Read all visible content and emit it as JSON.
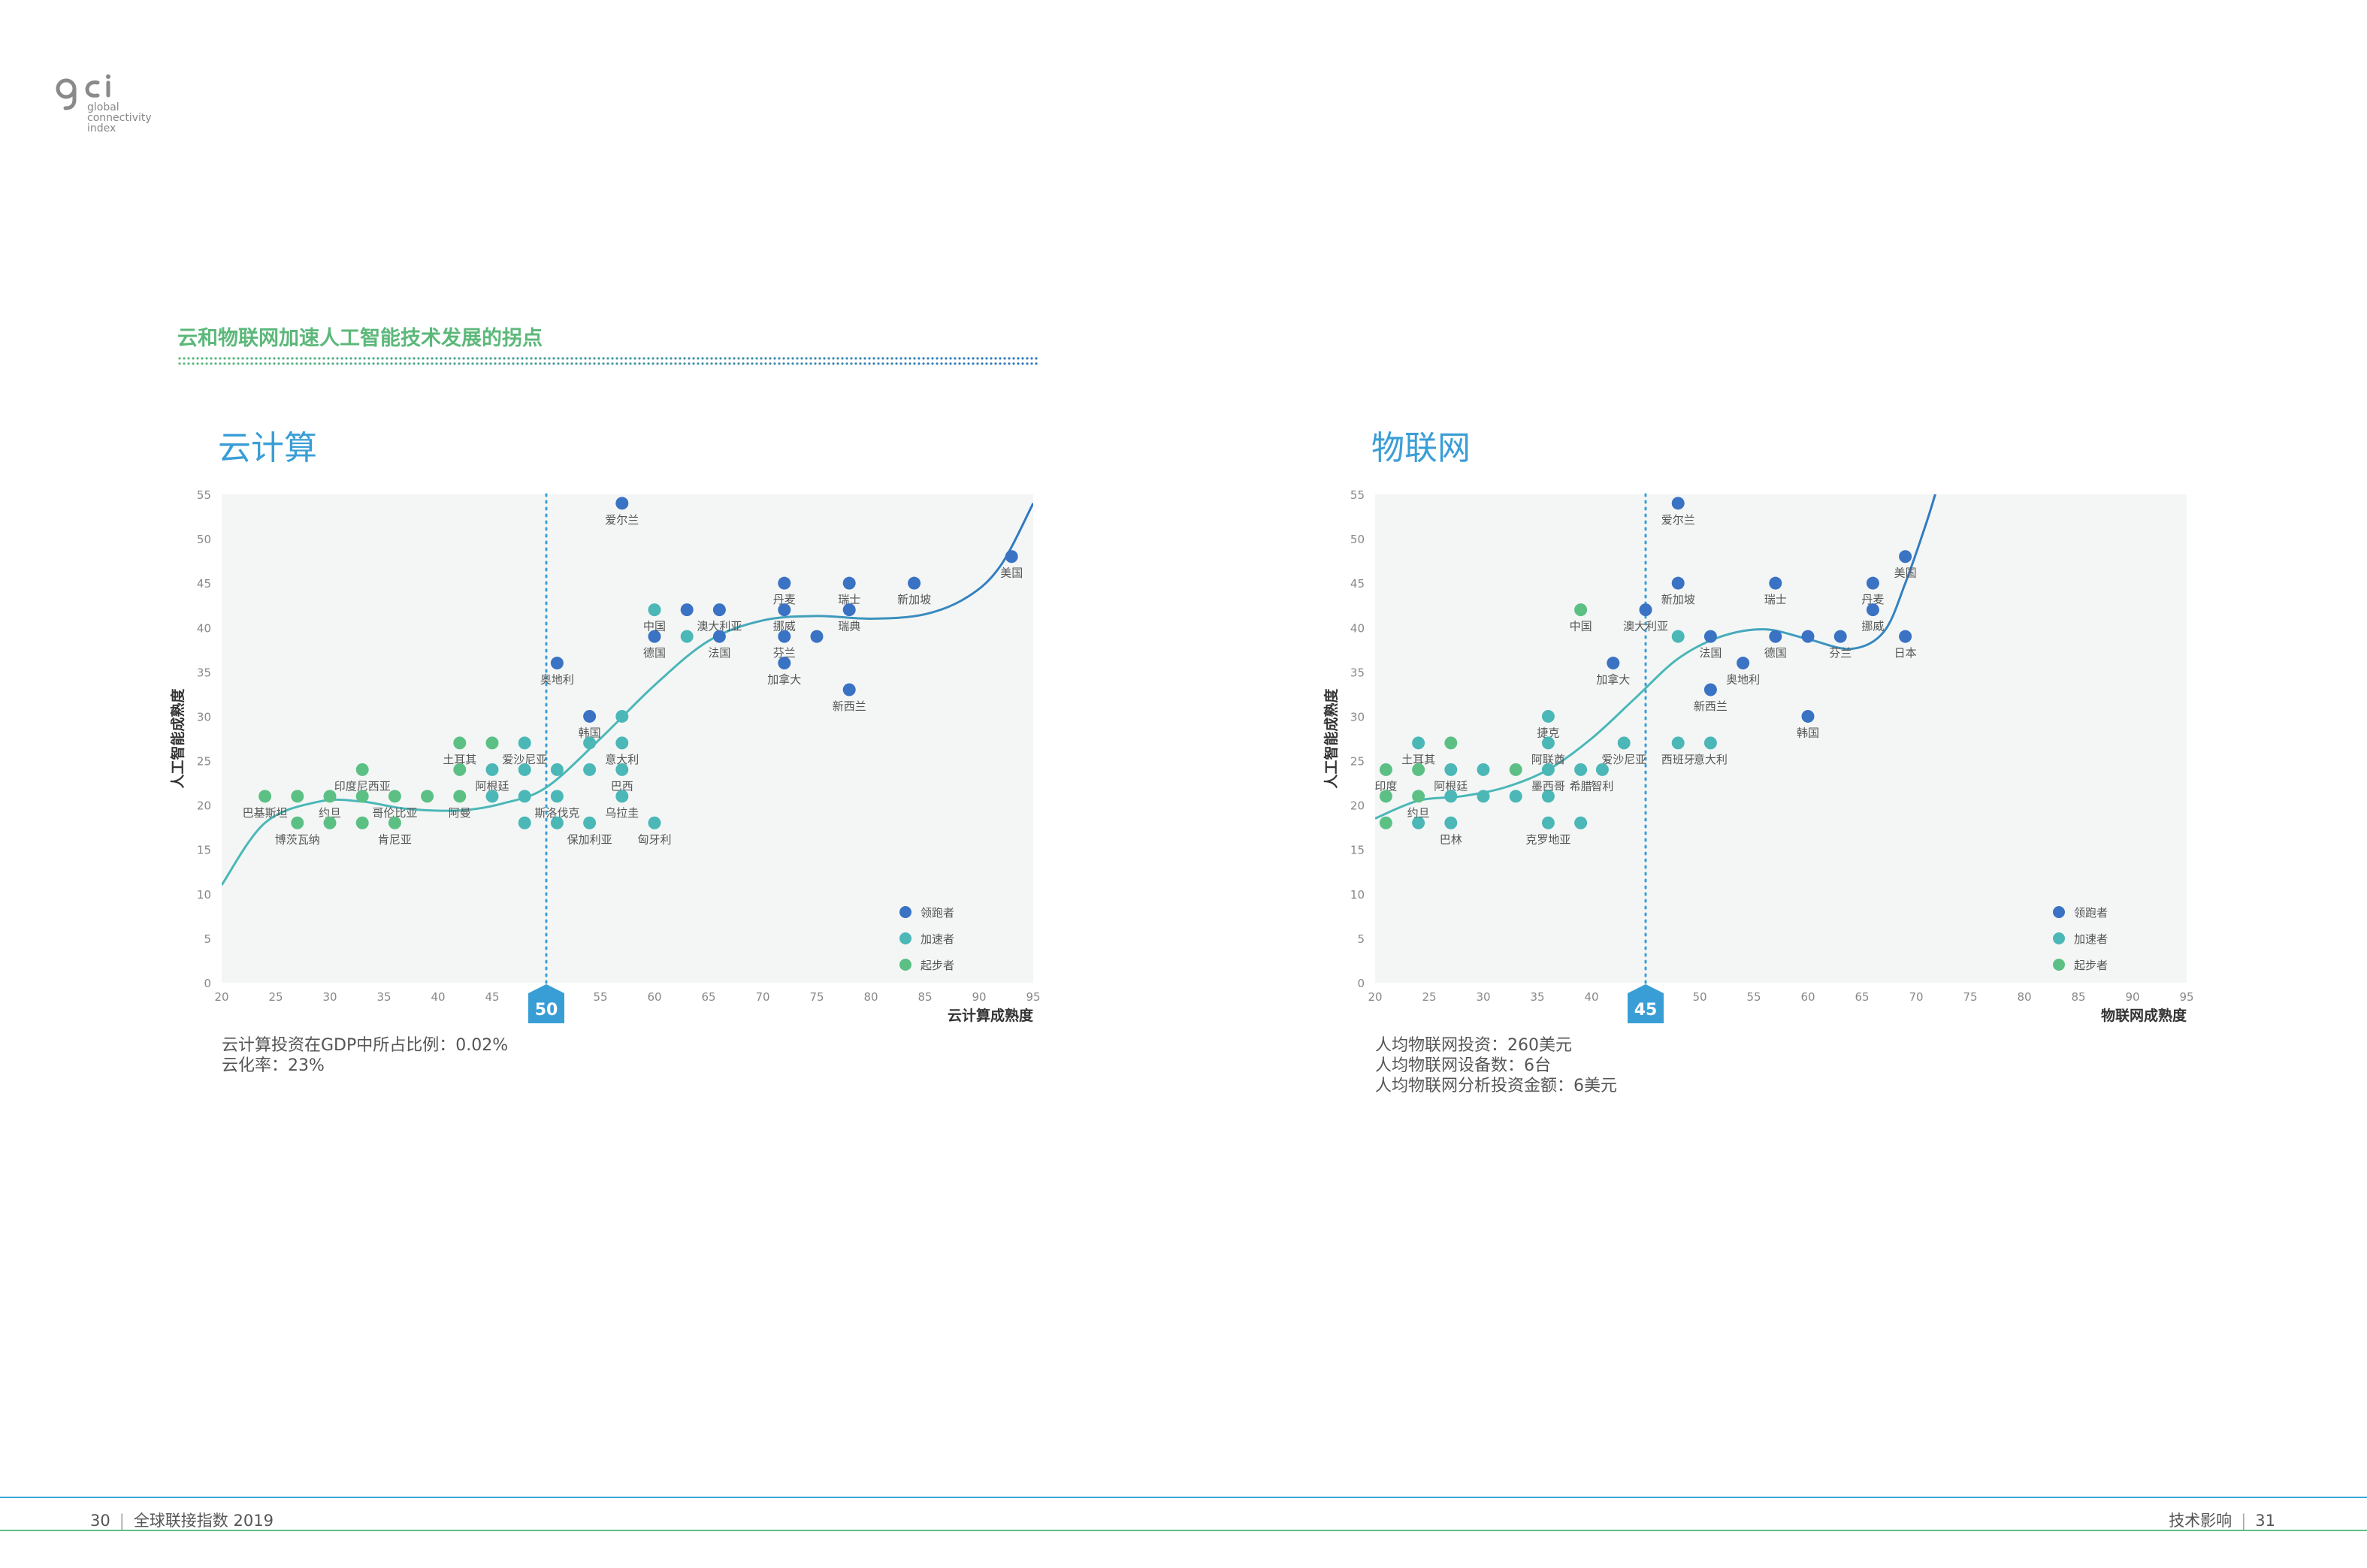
{
  "brand": {
    "logo_mark": "gci",
    "logo_lines": [
      "global",
      "connectivity",
      "index"
    ]
  },
  "section_title": "云和物联网加速人工智能技术发展的拐点",
  "charts": [
    {
      "heading": "云计算",
      "notes": [
        "云计算投资在GDP中所占比例：0.02%",
        "云化率：23%"
      ],
      "marker_label": "50",
      "legend": [
        "领跑者",
        "加速者",
        "起步者"
      ]
    },
    {
      "heading": "物联网",
      "notes": [
        "人均物联网投资：260美元",
        "人均物联网设备数：6台",
        "人均物联网分析投资金额：6美元"
      ],
      "marker_label": "45",
      "legend": [
        "领跑者",
        "加速者",
        "起步者"
      ]
    }
  ],
  "footer": {
    "left_page": "30",
    "left_title": "全球联接指数 2019",
    "right_title": "技术影响",
    "right_page": "31"
  },
  "colors": {
    "leader": "#3a72c4",
    "accelerator": "#4bb7b7",
    "starter": "#5cc084",
    "curve_a": "#4bb7b7",
    "curve_b": "#2f77c2",
    "marker": "#3a9ed6",
    "plot_bg": "#f4f6f6"
  },
  "chart_data": [
    {
      "type": "scatter",
      "xlabel": "云计算成熟度",
      "ylabel": "人工智能成熟度",
      "xlim": [
        20,
        95
      ],
      "ylim": [
        0,
        55
      ],
      "xticks": [
        20,
        25,
        30,
        35,
        40,
        45,
        50,
        55,
        60,
        65,
        70,
        75,
        80,
        85,
        90,
        95
      ],
      "yticks": [
        0,
        5,
        10,
        15,
        20,
        25,
        30,
        35,
        40,
        45,
        50,
        55
      ],
      "threshold_x": 50,
      "trend": [
        [
          20,
          11
        ],
        [
          24,
          18
        ],
        [
          29,
          20.4
        ],
        [
          33,
          20.4
        ],
        [
          37,
          19.6
        ],
        [
          42,
          19.4
        ],
        [
          46,
          20.2
        ],
        [
          50,
          22
        ],
        [
          55,
          27.5
        ],
        [
          60,
          33.5
        ],
        [
          65,
          38.5
        ],
        [
          70,
          40.8
        ],
        [
          75,
          41.3
        ],
        [
          80,
          41
        ],
        [
          85,
          41.5
        ],
        [
          89,
          43.5
        ],
        [
          92,
          47
        ],
        [
          95,
          54
        ]
      ],
      "series": [
        {
          "name": "领跑者",
          "points": [
            {
              "x": 57,
              "y": 54,
              "label": "爱尔兰"
            },
            {
              "x": 93,
              "y": 48,
              "label": "美国"
            },
            {
              "x": 78,
              "y": 45,
              "label": "瑞士"
            },
            {
              "x": 84,
              "y": 45,
              "label": "新加坡"
            },
            {
              "x": 72,
              "y": 45,
              "label": "丹麦"
            },
            {
              "x": 72,
              "y": 42,
              "label": "挪威"
            },
            {
              "x": 78,
              "y": 42,
              "label": "瑞典"
            },
            {
              "x": 63,
              "y": 42,
              "label": ""
            },
            {
              "x": 66,
              "y": 42,
              "label": "澳大利亚"
            },
            {
              "x": 60,
              "y": 39,
              "label": "德国"
            },
            {
              "x": 66,
              "y": 39,
              "label": "法国"
            },
            {
              "x": 72,
              "y": 39,
              "label": "芬兰"
            },
            {
              "x": 75,
              "y": 39,
              "label": ""
            },
            {
              "x": 72,
              "y": 36,
              "label": "加拿大"
            },
            {
              "x": 78,
              "y": 33,
              "label": "新西兰"
            },
            {
              "x": 51,
              "y": 36,
              "label": "奥地利"
            },
            {
              "x": 54,
              "y": 30,
              "label": "韩国"
            }
          ]
        },
        {
          "name": "加速者",
          "points": [
            {
              "x": 60,
              "y": 42,
              "label": "中国"
            },
            {
              "x": 63,
              "y": 39,
              "label": ""
            },
            {
              "x": 57,
              "y": 30,
              "label": ""
            },
            {
              "x": 54,
              "y": 27,
              "label": ""
            },
            {
              "x": 57,
              "y": 27,
              "label": "意大利"
            },
            {
              "x": 48,
              "y": 27,
              "label": "爱沙尼亚"
            },
            {
              "x": 45,
              "y": 24,
              "label": "阿根廷"
            },
            {
              "x": 48,
              "y": 24,
              "label": ""
            },
            {
              "x": 51,
              "y": 24,
              "label": ""
            },
            {
              "x": 54,
              "y": 24,
              "label": ""
            },
            {
              "x": 57,
              "y": 24,
              "label": "巴西"
            },
            {
              "x": 45,
              "y": 21,
              "label": ""
            },
            {
              "x": 48,
              "y": 21,
              "label": ""
            },
            {
              "x": 51,
              "y": 21,
              "label": "斯洛伐克"
            },
            {
              "x": 57,
              "y": 21,
              "label": "乌拉圭"
            },
            {
              "x": 48,
              "y": 18,
              "label": ""
            },
            {
              "x": 51,
              "y": 18,
              "label": ""
            },
            {
              "x": 54,
              "y": 18,
              "label": "保加利亚"
            },
            {
              "x": 60,
              "y": 18,
              "label": "匈牙利"
            }
          ]
        },
        {
          "name": "起步者",
          "points": [
            {
              "x": 42,
              "y": 27,
              "label": "土耳其"
            },
            {
              "x": 45,
              "y": 27,
              "label": ""
            },
            {
              "x": 33,
              "y": 24,
              "label": "印度尼西亚"
            },
            {
              "x": 42,
              "y": 24,
              "label": ""
            },
            {
              "x": 24,
              "y": 21,
              "label": "巴基斯坦"
            },
            {
              "x": 27,
              "y": 21,
              "label": ""
            },
            {
              "x": 30,
              "y": 21,
              "label": "约旦"
            },
            {
              "x": 33,
              "y": 21,
              "label": ""
            },
            {
              "x": 36,
              "y": 21,
              "label": "哥伦比亚"
            },
            {
              "x": 39,
              "y": 21,
              "label": ""
            },
            {
              "x": 42,
              "y": 21,
              "label": "阿曼"
            },
            {
              "x": 27,
              "y": 18,
              "label": "博茨瓦纳"
            },
            {
              "x": 30,
              "y": 18,
              "label": ""
            },
            {
              "x": 33,
              "y": 18,
              "label": ""
            },
            {
              "x": 36,
              "y": 18,
              "label": "肯尼亚"
            }
          ]
        }
      ]
    },
    {
      "type": "scatter",
      "xlabel": "物联网成熟度",
      "ylabel": "人工智能成熟度",
      "xlim": [
        20,
        95
      ],
      "ylim": [
        0,
        55
      ],
      "xticks": [
        20,
        25,
        30,
        35,
        40,
        45,
        50,
        55,
        60,
        65,
        70,
        75,
        80,
        85,
        90,
        95
      ],
      "yticks": [
        0,
        5,
        10,
        15,
        20,
        25,
        30,
        35,
        40,
        45,
        50,
        55
      ],
      "threshold_x": 45,
      "trend": [
        [
          20,
          18.5
        ],
        [
          24,
          20.5
        ],
        [
          28,
          21
        ],
        [
          32,
          22
        ],
        [
          36,
          24
        ],
        [
          40,
          27.5
        ],
        [
          44,
          32
        ],
        [
          48,
          36.5
        ],
        [
          52,
          39
        ],
        [
          56,
          39.8
        ],
        [
          60,
          38.7
        ],
        [
          64,
          37.6
        ],
        [
          67,
          39.5
        ],
        [
          69,
          45
        ],
        [
          71,
          52
        ],
        [
          72,
          56
        ]
      ],
      "series": [
        {
          "name": "领跑者",
          "points": [
            {
              "x": 48,
              "y": 54,
              "label": "爱尔兰"
            },
            {
              "x": 69,
              "y": 48,
              "label": "美国"
            },
            {
              "x": 48,
              "y": 45,
              "label": "新加坡"
            },
            {
              "x": 57,
              "y": 45,
              "label": "瑞士"
            },
            {
              "x": 66,
              "y": 45,
              "label": "丹麦"
            },
            {
              "x": 45,
              "y": 42,
              "label": "澳大利亚"
            },
            {
              "x": 66,
              "y": 42,
              "label": "挪威"
            },
            {
              "x": 51,
              "y": 39,
              "label": "法国"
            },
            {
              "x": 57,
              "y": 39,
              "label": "德国"
            },
            {
              "x": 60,
              "y": 39,
              "label": ""
            },
            {
              "x": 63,
              "y": 39,
              "label": "芬兰"
            },
            {
              "x": 69,
              "y": 39,
              "label": "日本"
            },
            {
              "x": 42,
              "y": 36,
              "label": "加拿大"
            },
            {
              "x": 54,
              "y": 36,
              "label": "奥地利"
            },
            {
              "x": 51,
              "y": 33,
              "label": "新西兰"
            },
            {
              "x": 60,
              "y": 30,
              "label": "韩国"
            }
          ]
        },
        {
          "name": "加速者",
          "points": [
            {
              "x": 48,
              "y": 39,
              "label": ""
            },
            {
              "x": 36,
              "y": 30,
              "label": "捷克"
            },
            {
              "x": 36,
              "y": 27,
              "label": "阿联酋"
            },
            {
              "x": 24,
              "y": 27,
              "label": "土耳其"
            },
            {
              "x": 43,
              "y": 27,
              "label": "爱沙尼亚"
            },
            {
              "x": 48,
              "y": 27,
              "label": "西班牙"
            },
            {
              "x": 51,
              "y": 27,
              "label": "意大利"
            },
            {
              "x": 27,
              "y": 24,
              "label": "阿根廷"
            },
            {
              "x": 30,
              "y": 24,
              "label": ""
            },
            {
              "x": 36,
              "y": 24,
              "label": "墨西哥"
            },
            {
              "x": 39,
              "y": 24,
              "label": "希腊"
            },
            {
              "x": 41,
              "y": 24,
              "label": "智利"
            },
            {
              "x": 27,
              "y": 21,
              "label": ""
            },
            {
              "x": 30,
              "y": 21,
              "label": ""
            },
            {
              "x": 33,
              "y": 21,
              "label": ""
            },
            {
              "x": 36,
              "y": 21,
              "label": ""
            },
            {
              "x": 24,
              "y": 18,
              "label": ""
            },
            {
              "x": 27,
              "y": 18,
              "label": "巴林"
            },
            {
              "x": 36,
              "y": 18,
              "label": "克罗地亚"
            },
            {
              "x": 39,
              "y": 18,
              "label": ""
            }
          ]
        },
        {
          "name": "起步者",
          "points": [
            {
              "x": 39,
              "y": 42,
              "label": "中国"
            },
            {
              "x": 27,
              "y": 27,
              "label": ""
            },
            {
              "x": 21,
              "y": 24,
              "label": "印度"
            },
            {
              "x": 24,
              "y": 24,
              "label": ""
            },
            {
              "x": 21,
              "y": 21,
              "label": ""
            },
            {
              "x": 24,
              "y": 21,
              "label": "约旦"
            },
            {
              "x": 21,
              "y": 18,
              "label": ""
            },
            {
              "x": 33,
              "y": 24,
              "label": ""
            }
          ]
        }
      ]
    }
  ]
}
